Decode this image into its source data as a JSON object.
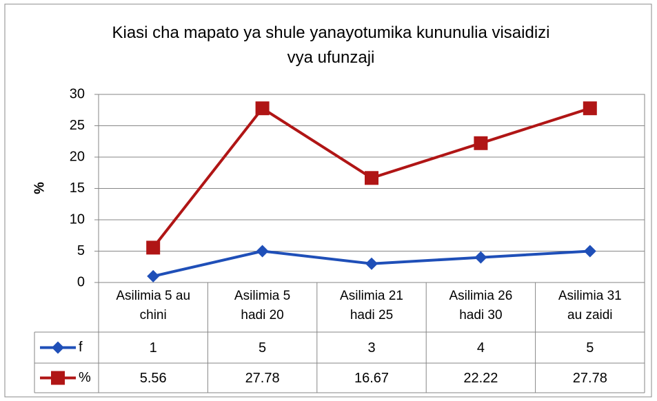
{
  "chart_data": {
    "type": "line",
    "title": "Kiasi cha mapato ya shule yanayotumika kununulia visaidizi vya ufunzaji",
    "y_label": "%",
    "categories": [
      "Asilimia 5 au chini",
      "Asilimia 5 hadi 20",
      "Asilimia 21 hadi 25",
      "Asilimia 26 hadi 30",
      "Asilimia 31 au zaidi"
    ],
    "series": [
      {
        "name": "f",
        "color": "#1f4fb8",
        "marker": "diamond",
        "values": [
          1,
          5,
          3,
          4,
          5
        ]
      },
      {
        "name": "%",
        "color": "#b01515",
        "marker": "square",
        "values": [
          5.56,
          27.78,
          16.67,
          22.22,
          27.78
        ]
      }
    ],
    "ylim": [
      0,
      30
    ],
    "yticks": [
      0,
      5,
      10,
      15,
      20,
      25,
      30
    ],
    "grid": true,
    "data_table": true
  }
}
